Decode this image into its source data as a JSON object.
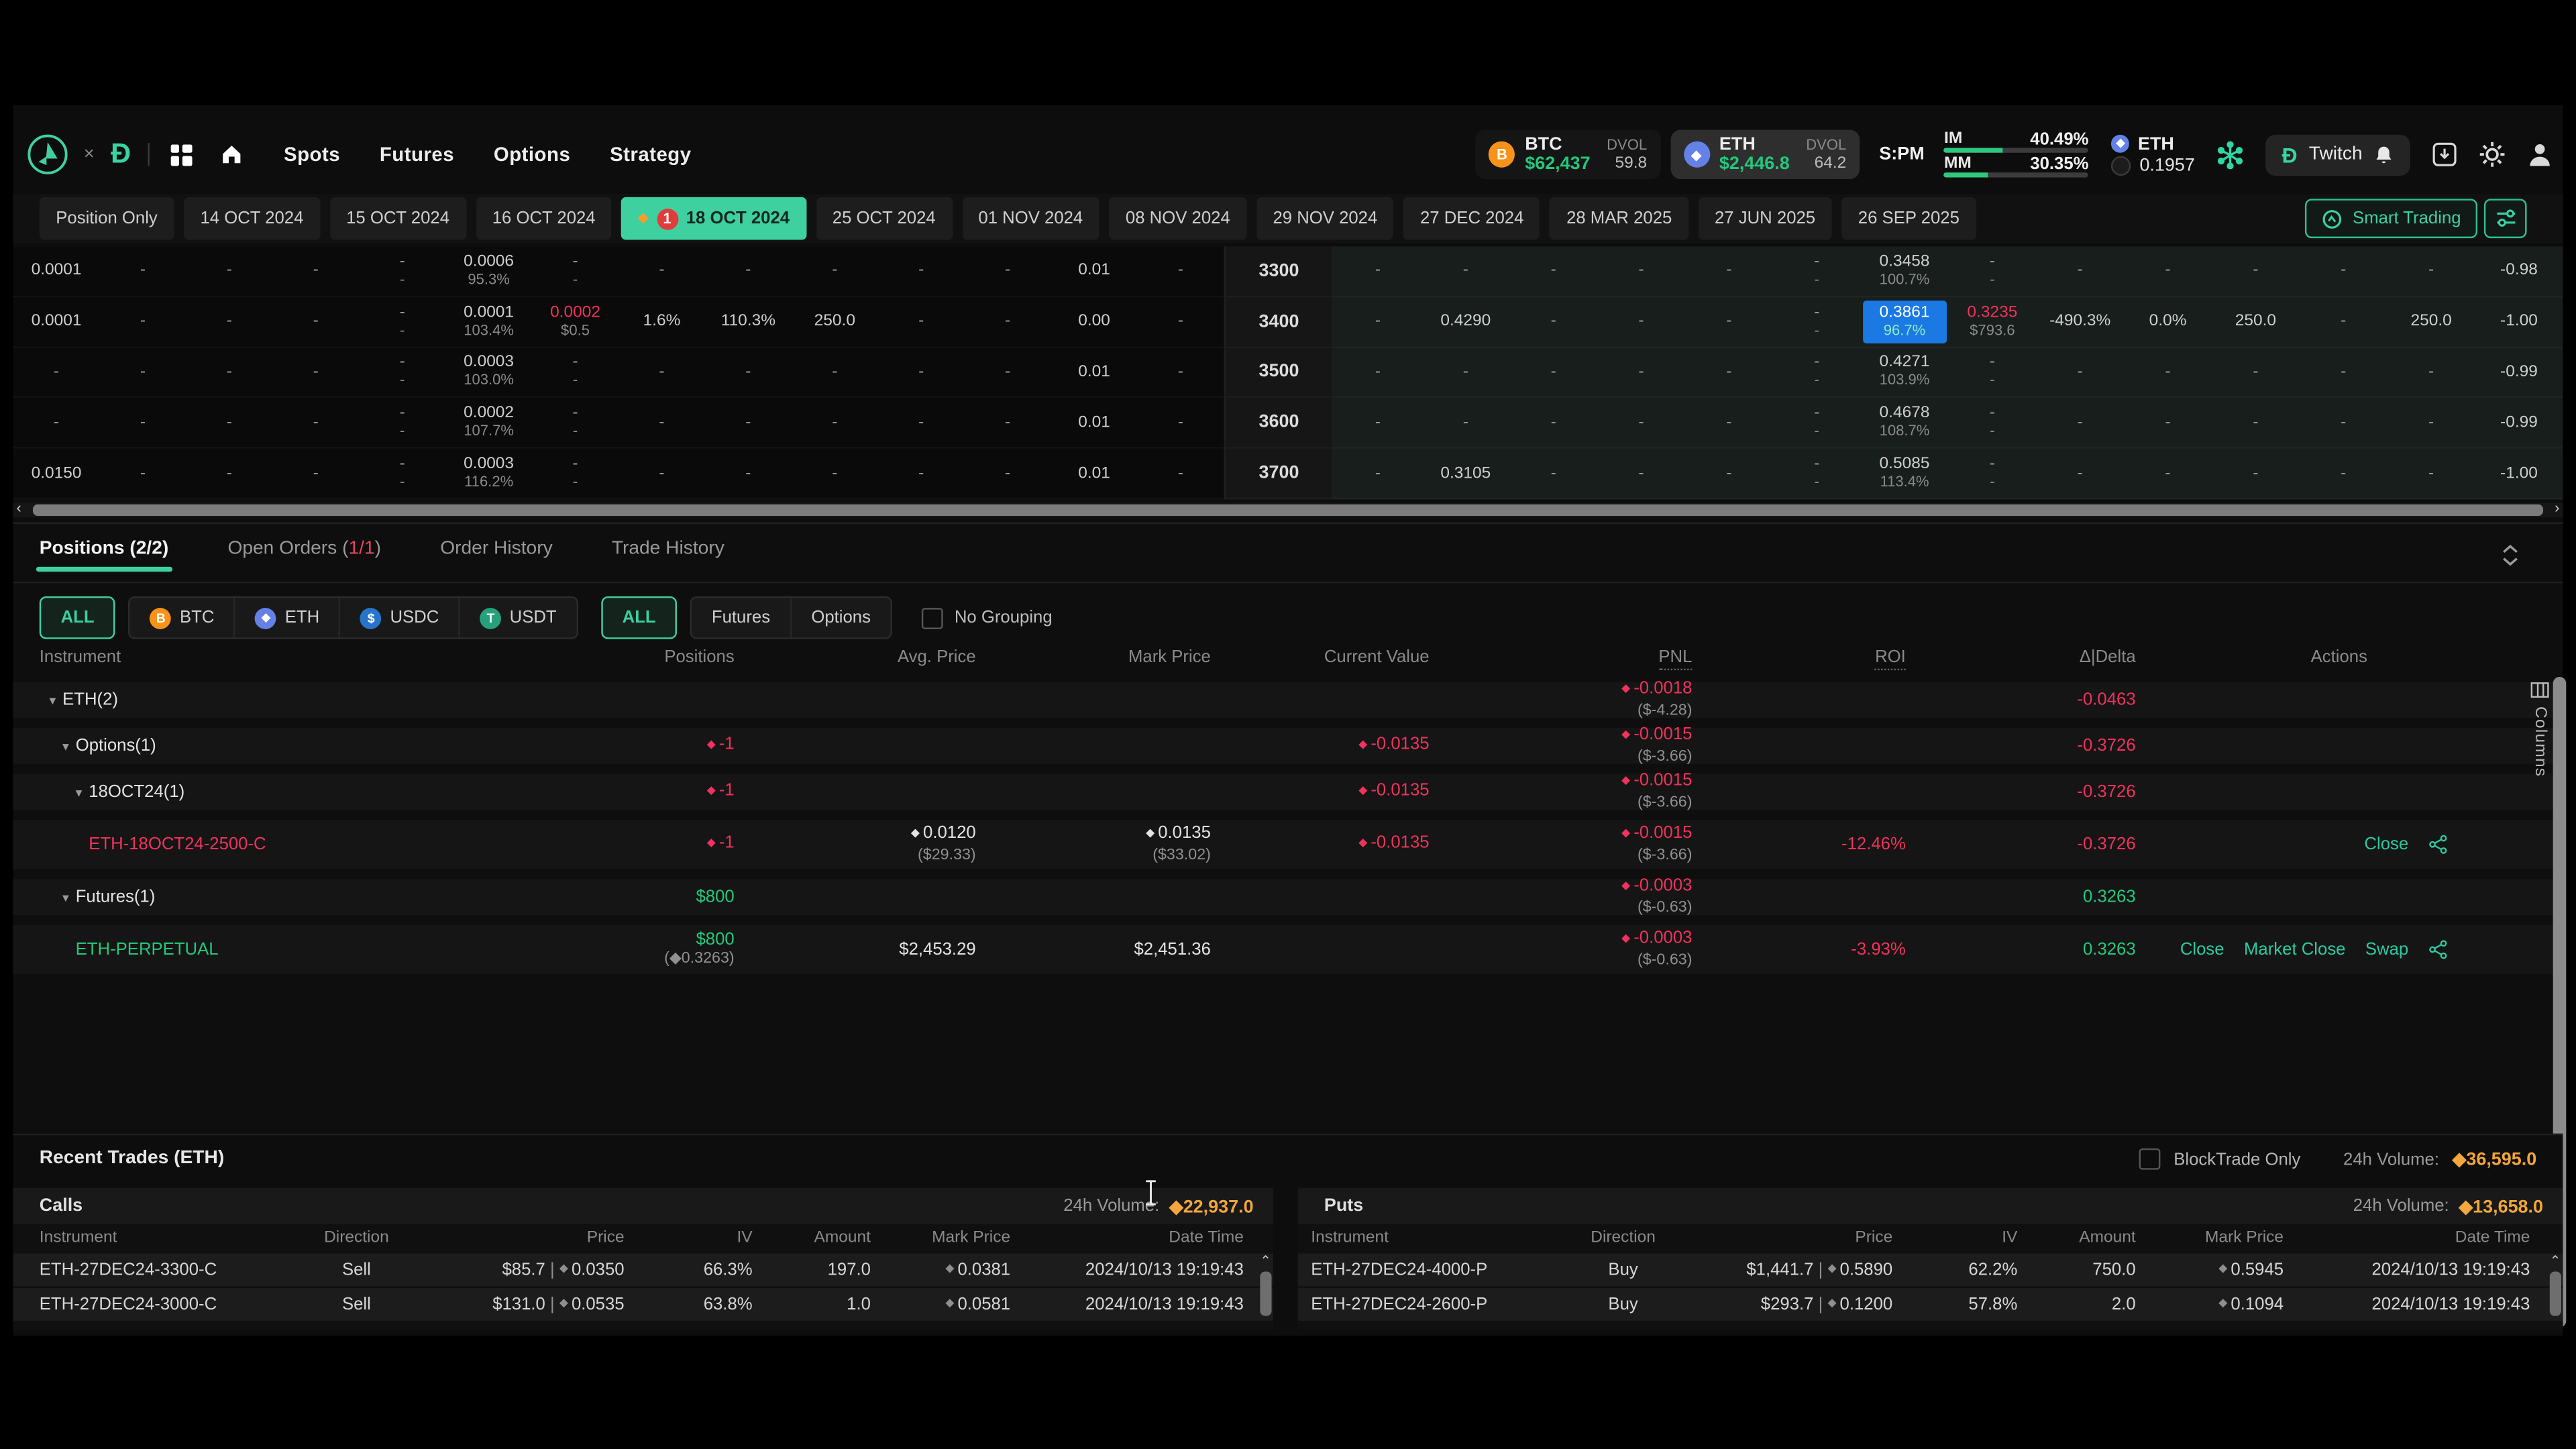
{
  "colors": {
    "teal": "#2ec9a0",
    "red": "#f0325c",
    "green": "#23c77d",
    "orange": "#f2a63c",
    "blue": "#1b79e4",
    "selected_tab": "#3fd0a0"
  },
  "nav": {
    "collab_x": "×",
    "menu": [
      "Spots",
      "Futures",
      "Options",
      "Strategy"
    ],
    "tickers": [
      {
        "symbol": "BTC",
        "price": "$62,437",
        "dvol_label": "DVOL",
        "dvol": "59.8",
        "icon": "btc",
        "icon_color": "#f7931a",
        "selected": false
      },
      {
        "symbol": "ETH",
        "price": "$2,446.8",
        "dvol_label": "DVOL",
        "dvol": "64.2",
        "icon": "eth",
        "icon_color": "#6481e7",
        "selected": true
      }
    ],
    "margin_mode": "S:PM",
    "margins": [
      {
        "label": "IM",
        "value": "40.49%",
        "pct": 40
      },
      {
        "label": "MM",
        "value": "30.35%",
        "pct": 30
      }
    ],
    "wallet": {
      "asset": "ETH",
      "balance": "0.1957"
    },
    "twitch_label": "Twitch"
  },
  "expiry": {
    "tabs": [
      {
        "label": "Position Only"
      },
      {
        "label": "14 OCT 2024"
      },
      {
        "label": "15 OCT 2024"
      },
      {
        "label": "16 OCT 2024"
      },
      {
        "label": "18 OCT 2024",
        "selected": true,
        "badge": "1"
      },
      {
        "label": "25 OCT 2024"
      },
      {
        "label": "01 NOV 2024"
      },
      {
        "label": "08 NOV 2024"
      },
      {
        "label": "29 NOV 2024"
      },
      {
        "label": "27 DEC 2024"
      },
      {
        "label": "28 MAR 2025"
      },
      {
        "label": "27 JUN 2025"
      },
      {
        "label": "26 SEP 2025"
      }
    ],
    "smart_trading_label": "Smart Trading"
  },
  "chain": {
    "rows": [
      {
        "strike": "3300",
        "calls": [
          {
            "m": "0.0001"
          },
          {
            "m": "-"
          },
          {
            "m": "-"
          },
          {
            "m": "-"
          },
          {
            "m": "-",
            "s": "-"
          },
          {
            "m": "0.0006",
            "s": "95.3%"
          },
          {
            "m": "-",
            "s": "-"
          },
          {
            "m": "-"
          },
          {
            "m": "-"
          },
          {
            "m": "-"
          },
          {
            "m": "-"
          },
          {
            "m": "-"
          },
          {
            "m": "0.01"
          },
          {
            "m": "-"
          }
        ],
        "puts": [
          {
            "m": "-"
          },
          {
            "m": "-"
          },
          {
            "m": "-"
          },
          {
            "m": "-"
          },
          {
            "m": "-"
          },
          {
            "m": "-",
            "s": "-"
          },
          {
            "m": "0.3458",
            "s": "100.7%"
          },
          {
            "m": "-",
            "s": "-"
          },
          {
            "m": "-"
          },
          {
            "m": "-"
          },
          {
            "m": "-"
          },
          {
            "m": "-"
          },
          {
            "m": "-"
          },
          {
            "m": "-0.98"
          }
        ]
      },
      {
        "strike": "3400",
        "calls": [
          {
            "m": "0.0001"
          },
          {
            "m": "-"
          },
          {
            "m": "-"
          },
          {
            "m": "-"
          },
          {
            "m": "-",
            "s": "-"
          },
          {
            "m": "0.0001",
            "s": "103.4%"
          },
          {
            "m": "0.0002",
            "s": "$0.5",
            "c": "red"
          },
          {
            "m": "1.6%"
          },
          {
            "m": "110.3%"
          },
          {
            "m": "250.0"
          },
          {
            "m": "-"
          },
          {
            "m": "-"
          },
          {
            "m": "0.00"
          },
          {
            "m": "-"
          }
        ],
        "puts": [
          {
            "m": "-"
          },
          {
            "m": "0.4290"
          },
          {
            "m": "-"
          },
          {
            "m": "-"
          },
          {
            "m": "-"
          },
          {
            "m": "-",
            "s": "-"
          },
          {
            "m": "0.3861",
            "s": "96.7%",
            "hl": true
          },
          {
            "m": "0.3235",
            "s": "$793.6",
            "c": "red"
          },
          {
            "m": "-490.3%"
          },
          {
            "m": "0.0%"
          },
          {
            "m": "250.0"
          },
          {
            "m": "-"
          },
          {
            "m": "250.0"
          },
          {
            "m": "-1.00"
          }
        ]
      },
      {
        "strike": "3500",
        "calls": [
          {
            "m": "-"
          },
          {
            "m": "-"
          },
          {
            "m": "-"
          },
          {
            "m": "-"
          },
          {
            "m": "-",
            "s": "-"
          },
          {
            "m": "0.0003",
            "s": "103.0%"
          },
          {
            "m": "-",
            "s": "-"
          },
          {
            "m": "-"
          },
          {
            "m": "-"
          },
          {
            "m": "-"
          },
          {
            "m": "-"
          },
          {
            "m": "-"
          },
          {
            "m": "0.01"
          },
          {
            "m": "-"
          }
        ],
        "puts": [
          {
            "m": "-"
          },
          {
            "m": "-"
          },
          {
            "m": "-"
          },
          {
            "m": "-"
          },
          {
            "m": "-"
          },
          {
            "m": "-",
            "s": "-"
          },
          {
            "m": "0.4271",
            "s": "103.9%"
          },
          {
            "m": "-",
            "s": "-"
          },
          {
            "m": "-"
          },
          {
            "m": "-"
          },
          {
            "m": "-"
          },
          {
            "m": "-"
          },
          {
            "m": "-"
          },
          {
            "m": "-0.99"
          }
        ]
      },
      {
        "strike": "3600",
        "calls": [
          {
            "m": "-"
          },
          {
            "m": "-"
          },
          {
            "m": "-"
          },
          {
            "m": "-"
          },
          {
            "m": "-",
            "s": "-"
          },
          {
            "m": "0.0002",
            "s": "107.7%"
          },
          {
            "m": "-",
            "s": "-"
          },
          {
            "m": "-"
          },
          {
            "m": "-"
          },
          {
            "m": "-"
          },
          {
            "m": "-"
          },
          {
            "m": "-"
          },
          {
            "m": "0.01"
          },
          {
            "m": "-"
          }
        ],
        "puts": [
          {
            "m": "-"
          },
          {
            "m": "-"
          },
          {
            "m": "-"
          },
          {
            "m": "-"
          },
          {
            "m": "-"
          },
          {
            "m": "-",
            "s": "-"
          },
          {
            "m": "0.4678",
            "s": "108.7%"
          },
          {
            "m": "-",
            "s": "-"
          },
          {
            "m": "-"
          },
          {
            "m": "-"
          },
          {
            "m": "-"
          },
          {
            "m": "-"
          },
          {
            "m": "-"
          },
          {
            "m": "-0.99"
          }
        ]
      },
      {
        "strike": "3700",
        "calls": [
          {
            "m": "0.0150"
          },
          {
            "m": "-"
          },
          {
            "m": "-"
          },
          {
            "m": "-"
          },
          {
            "m": "-",
            "s": "-"
          },
          {
            "m": "0.0003",
            "s": "116.2%"
          },
          {
            "m": "-",
            "s": "-"
          },
          {
            "m": "-"
          },
          {
            "m": "-"
          },
          {
            "m": "-"
          },
          {
            "m": "-"
          },
          {
            "m": "-"
          },
          {
            "m": "0.01"
          },
          {
            "m": "-"
          }
        ],
        "puts": [
          {
            "m": "-"
          },
          {
            "m": "0.3105"
          },
          {
            "m": "-"
          },
          {
            "m": "-"
          },
          {
            "m": "-"
          },
          {
            "m": "-",
            "s": "-"
          },
          {
            "m": "0.5085",
            "s": "113.4%"
          },
          {
            "m": "-",
            "s": "-"
          },
          {
            "m": "-"
          },
          {
            "m": "-"
          },
          {
            "m": "-"
          },
          {
            "m": "-"
          },
          {
            "m": "-"
          },
          {
            "m": "-1.00"
          }
        ]
      }
    ]
  },
  "positions": {
    "tab_positions": "Positions (2/2)",
    "tab_open_pre": "Open Orders (",
    "tab_open_count": "1/1",
    "tab_open_post": ")",
    "tab_order_history": "Order History",
    "tab_trade_history": "Trade History",
    "filters_currency": [
      {
        "label": "ALL",
        "active": true
      },
      {
        "label": "BTC",
        "icon": "btc",
        "icon_color": "#f7931a"
      },
      {
        "label": "ETH",
        "icon": "eth",
        "icon_color": "#6481e7"
      },
      {
        "label": "USDC",
        "icon": "usdc",
        "icon_color": "#2775ca"
      },
      {
        "label": "USDT",
        "icon": "usdt",
        "icon_color": "#26a17b"
      }
    ],
    "filters_type": [
      {
        "label": "ALL",
        "active": true
      },
      {
        "label": "Futures"
      },
      {
        "label": "Options"
      }
    ],
    "no_grouping_label": "No Grouping",
    "headers": [
      "Instrument",
      "Positions",
      "Avg. Price",
      "Mark Price",
      "Current Value",
      "PNL",
      "ROI",
      "Δ|Delta",
      "Actions"
    ],
    "rows": [
      {
        "indent": 0,
        "caret": true,
        "name": "ETH(2)",
        "name_c": "wht",
        "kind": "group",
        "cells": {
          "pnl": {
            "di": "red",
            "m": "-0.0018",
            "s": "($-4.28)",
            "c": "red"
          },
          "delta": {
            "m": "-0.0463",
            "c": "red"
          }
        }
      },
      {
        "indent": 1,
        "caret": true,
        "name": "Options(1)",
        "name_c": "wht",
        "kind": "group",
        "cells": {
          "pos": {
            "di": "red",
            "m": "-1",
            "c": "red"
          },
          "cv": {
            "di": "red",
            "m": "-0.0135",
            "c": "red"
          },
          "pnl": {
            "di": "red",
            "m": "-0.0015",
            "s": "($-3.66)",
            "c": "red"
          },
          "delta": {
            "m": "-0.3726",
            "c": "red"
          }
        }
      },
      {
        "indent": 2,
        "caret": true,
        "name": "18OCT24(1)",
        "name_c": "wht",
        "kind": "group",
        "cells": {
          "pos": {
            "di": "red",
            "m": "-1",
            "c": "red"
          },
          "cv": {
            "di": "red",
            "m": "-0.0135",
            "c": "red"
          },
          "pnl": {
            "di": "red",
            "m": "-0.0015",
            "s": "($-3.66)",
            "c": "red"
          },
          "delta": {
            "m": "-0.3726",
            "c": "red"
          }
        }
      },
      {
        "indent": 3,
        "caret": false,
        "name": "ETH-18OCT24-2500-C",
        "name_c": "red",
        "kind": "leaf",
        "cells": {
          "pos": {
            "di": "red",
            "m": "-1",
            "c": "red"
          },
          "avg": {
            "di": "wht",
            "m": "0.0120",
            "s": "($29.33)"
          },
          "mark": {
            "di": "wht",
            "m": "0.0135",
            "s": "($33.02)"
          },
          "cv": {
            "di": "red",
            "m": "-0.0135",
            "c": "red"
          },
          "pnl": {
            "di": "red",
            "m": "-0.0015",
            "s": "($-3.66)",
            "c": "red"
          },
          "roi": {
            "m": "-12.46%",
            "c": "red"
          },
          "delta": {
            "m": "-0.3726",
            "c": "red"
          },
          "actions": [
            "Close"
          ],
          "share": true
        }
      },
      {
        "indent": 1,
        "caret": true,
        "name": "Futures(1)",
        "name_c": "wht",
        "kind": "group",
        "cells": {
          "pos": {
            "m": "$800",
            "c": "grn"
          },
          "pnl": {
            "di": "red",
            "m": "-0.0003",
            "s": "($-0.63)",
            "c": "red"
          },
          "delta": {
            "m": "0.3263",
            "c": "grn"
          }
        }
      },
      {
        "indent": 2,
        "caret": false,
        "name": "ETH-PERPETUAL",
        "name_c": "grn",
        "kind": "leaf",
        "cells": {
          "pos": {
            "m": "$800",
            "c": "grn",
            "s": "(◆0.3263)"
          },
          "avg": {
            "m": "$2,453.29"
          },
          "mark": {
            "m": "$2,451.36"
          },
          "pnl": {
            "di": "red",
            "m": "-0.0003",
            "s": "($-0.63)",
            "c": "red"
          },
          "roi": {
            "m": "-3.93%",
            "c": "red"
          },
          "delta": {
            "m": "0.3263",
            "c": "grn"
          },
          "actions": [
            "Close",
            "Market Close",
            "Swap"
          ],
          "share": true
        }
      }
    ],
    "columns_label": "Columns"
  },
  "trades": {
    "title": "Recent Trades (ETH)",
    "blocktrade_label": "BlockTrade Only",
    "total_volume_label": "24h Volume:",
    "total_volume": "◆36,595.0",
    "headers": [
      "Instrument",
      "Direction",
      "Price",
      "IV",
      "Amount",
      "Mark Price",
      "Date Time"
    ],
    "calls": {
      "label": "Calls",
      "volume_label": "24h Volume:",
      "volume": "◆22,937.0",
      "rows": [
        {
          "instrument": "ETH-27DEC24-3300-C",
          "direction": "Sell",
          "price_usd": "$85.7",
          "price_eth": "0.0350",
          "iv": "66.3%",
          "amount": "197.0",
          "mark": "0.0381",
          "time": "2024/10/13 19:19:43"
        },
        {
          "instrument": "ETH-27DEC24-3000-C",
          "direction": "Sell",
          "price_usd": "$131.0",
          "price_eth": "0.0535",
          "iv": "63.8%",
          "amount": "1.0",
          "mark": "0.0581",
          "time": "2024/10/13 19:19:43"
        }
      ]
    },
    "puts": {
      "label": "Puts",
      "volume_label": "24h Volume:",
      "volume": "◆13,658.0",
      "rows": [
        {
          "instrument": "ETH-27DEC24-4000-P",
          "direction": "Buy",
          "price_usd": "$1,441.7",
          "price_eth": "0.5890",
          "iv": "62.2%",
          "amount": "750.0",
          "mark": "0.5945",
          "time": "2024/10/13 19:19:43"
        },
        {
          "instrument": "ETH-27DEC24-2600-P",
          "direction": "Buy",
          "price_usd": "$293.7",
          "price_eth": "0.1200",
          "iv": "57.8%",
          "amount": "2.0",
          "mark": "0.1094",
          "time": "2024/10/13 19:19:43"
        }
      ]
    }
  }
}
